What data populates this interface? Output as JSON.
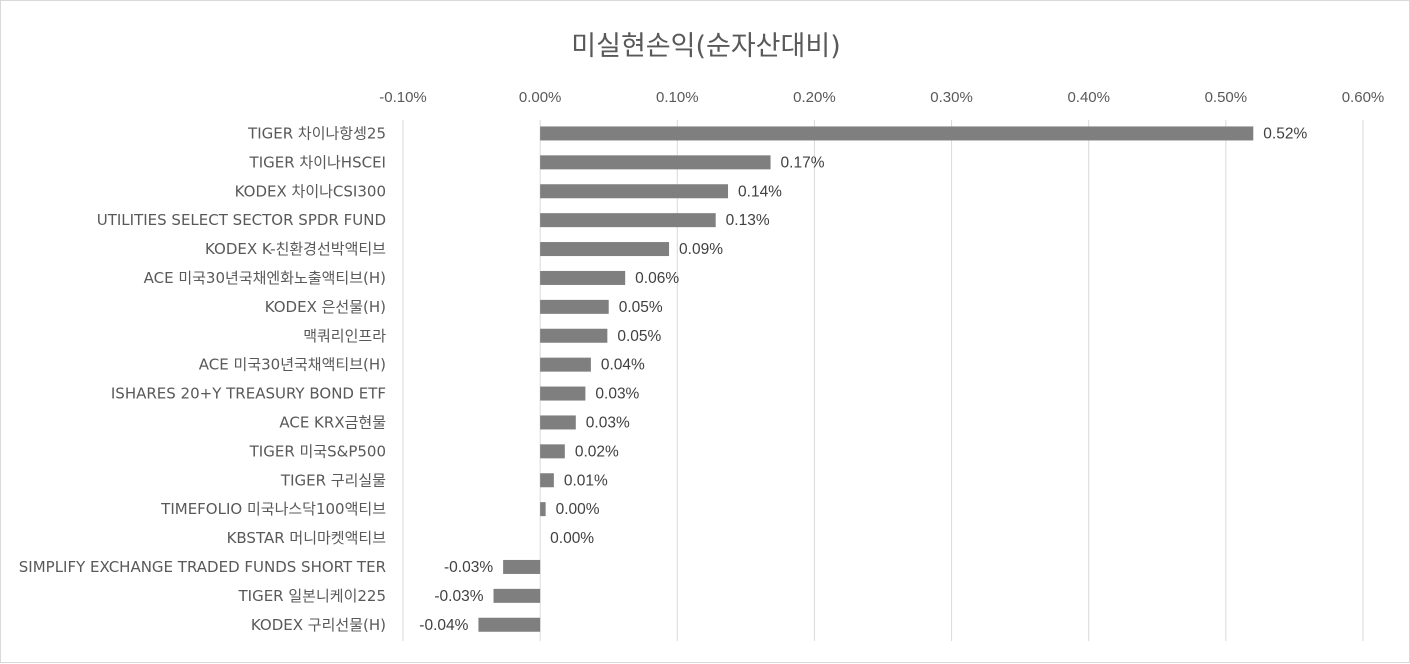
{
  "chart_data": {
    "type": "bar",
    "orientation": "horizontal",
    "title": "미실현손익(순자산대비)",
    "xlim": [
      -0.001,
      0.006
    ],
    "x_ticks": [
      -0.001,
      0,
      0.001,
      0.002,
      0.003,
      0.004,
      0.005,
      0.006
    ],
    "x_tick_labels": [
      "-0.10%",
      "0.00%",
      "0.10%",
      "0.20%",
      "0.30%",
      "0.40%",
      "0.50%",
      "0.60%"
    ],
    "x_axis_position": "top",
    "grid": true,
    "legend": "none",
    "categories": [
      "TIGER 차이나항셍25",
      "TIGER 차이나HSCEI",
      "KODEX 차이나CSI300",
      "UTILITIES SELECT SECTOR SPDR FUND",
      "KODEX K-친환경선박액티브",
      "ACE 미국30년국채엔화노출액티브(H)",
      "KODEX 은선물(H)",
      "맥쿼리인프라",
      "ACE 미국30년국채액티브(H)",
      "ISHARES 20+Y TREASURY BOND ETF",
      "ACE KRX금현물",
      "TIGER 미국S&P500",
      "TIGER 구리실물",
      "TIMEFOLIO 미국나스닥100액티브",
      "KBSTAR 머니마켓액티브",
      "SIMPLIFY EXCHANGE TRADED FUNDS SHORT TER",
      "TIGER 일본니케이225",
      "KODEX 구리선물(H)"
    ],
    "values": [
      0.0052,
      0.00168,
      0.00137,
      0.00128,
      0.00094,
      0.00062,
      0.0005,
      0.00049,
      0.00037,
      0.00033,
      0.00026,
      0.00018,
      0.0001,
      4e-05,
      0.0,
      -0.00027,
      -0.00034,
      -0.00045
    ],
    "data_labels": [
      "0.52%",
      "0.17%",
      "0.14%",
      "0.13%",
      "0.09%",
      "0.06%",
      "0.05%",
      "0.05%",
      "0.04%",
      "0.03%",
      "0.03%",
      "0.02%",
      "0.01%",
      "0.00%",
      "0.00%",
      "-0.03%",
      "-0.03%",
      "-0.04%"
    ],
    "bar_color": "#7f7f7f"
  }
}
